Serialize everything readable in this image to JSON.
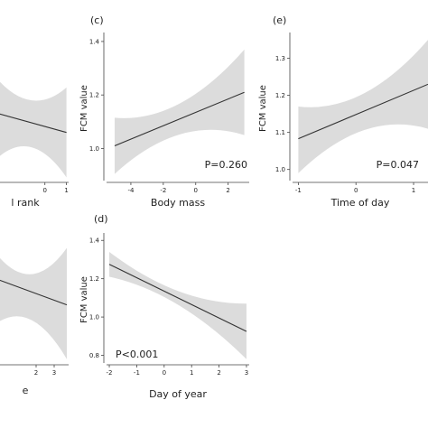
{
  "chart_data": [
    {
      "panel": "",
      "type": "line",
      "xlabel": "l rank",
      "ylabel": "",
      "p_value": "",
      "x_ticks": [
        "0",
        "1"
      ],
      "y_ticks": [],
      "xlim": [
        -2.5,
        1.1
      ],
      "ylim": [
        0.95,
        1.4
      ],
      "x": [
        -2.5,
        1.0
      ],
      "fit": [
        1.165,
        1.1
      ],
      "lower": [
        1.0,
        0.96
      ],
      "upper": [
        1.29,
        1.24
      ]
    },
    {
      "panel": "",
      "type": "line",
      "xlabel": "e",
      "ylabel": "",
      "p_value": "",
      "x_ticks": [
        "2",
        "3"
      ],
      "y_ticks": [],
      "xlim": [
        -0.5,
        3.8
      ],
      "ylim": [
        0.9,
        1.4
      ],
      "x": [
        -0.5,
        3.7
      ],
      "fit": [
        1.24,
        1.13
      ],
      "lower": [
        1.04,
        0.915
      ],
      "upper": [
        1.36,
        1.355
      ]
    },
    {
      "panel": "(c)",
      "type": "line",
      "xlabel": "Body mass",
      "ylabel": "FCM value",
      "p_value": "P=0.260",
      "x_ticks": [
        "-4",
        "-2",
        "0",
        "2"
      ],
      "y_ticks": [
        "1.0",
        "1.2",
        "1.4"
      ],
      "xlim": [
        -5.5,
        3.3
      ],
      "ylim": [
        0.88,
        1.42
      ],
      "x": [
        -5.0,
        3.0
      ],
      "fit": [
        1.01,
        1.21
      ],
      "lower": [
        0.905,
        1.05
      ],
      "upper": [
        1.115,
        1.37
      ]
    },
    {
      "panel": "(d)",
      "type": "line",
      "xlabel": "Day of year",
      "ylabel": "FCM value",
      "p_value": "P<0.001",
      "x_ticks": [
        "-2",
        "-1",
        "0",
        "1",
        "2",
        "3"
      ],
      "y_ticks": [
        "0.8",
        "1.0",
        "1.2",
        "1.4"
      ],
      "xlim": [
        -2.1,
        3.1
      ],
      "ylim": [
        0.76,
        1.42
      ],
      "x": [
        -2.0,
        3.0
      ],
      "fit": [
        1.275,
        0.925
      ],
      "lower": [
        1.21,
        0.78
      ],
      "upper": [
        1.34,
        1.07
      ]
    },
    {
      "panel": "(e)",
      "type": "line",
      "xlabel": "Time of day",
      "ylabel": "FCM value",
      "p_value": "P=0.047",
      "x_ticks": [
        "-1",
        "0",
        "1"
      ],
      "y_ticks": [
        "1.0",
        "1.1",
        "1.2",
        "1.3"
      ],
      "xlim": [
        -1.1,
        1.25
      ],
      "ylim": [
        0.97,
        1.36
      ],
      "x": [
        -1.0,
        1.25
      ],
      "fit": [
        1.083,
        1.23
      ],
      "lower": [
        0.99,
        1.11
      ],
      "upper": [
        1.17,
        1.35
      ]
    }
  ]
}
